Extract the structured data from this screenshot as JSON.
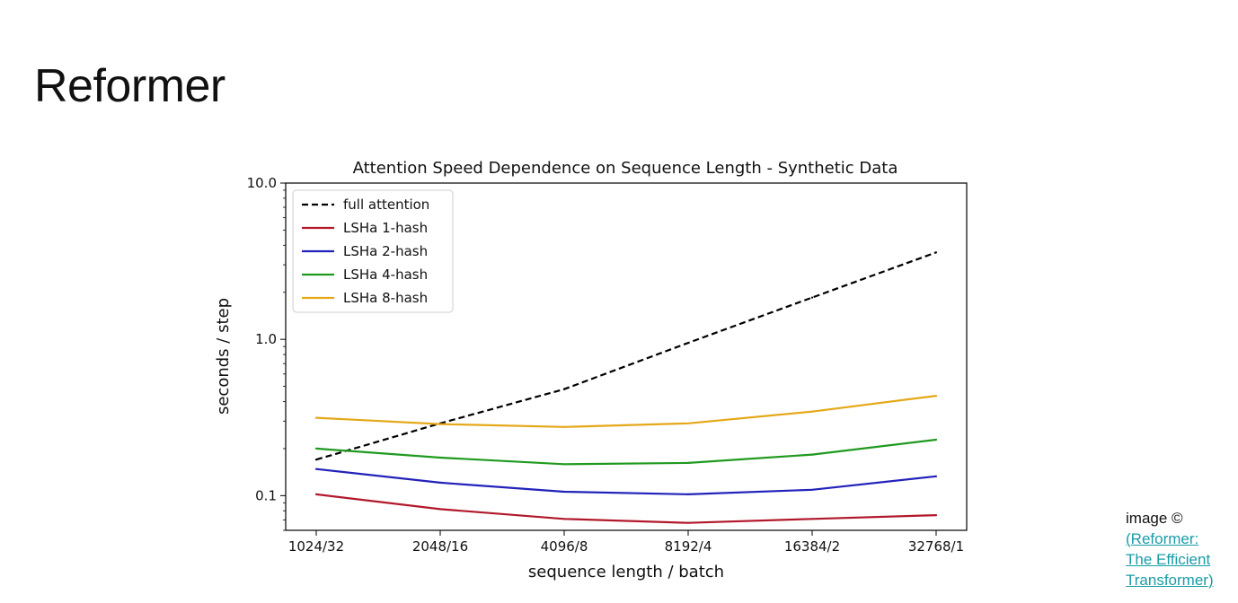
{
  "slide": {
    "title": "Reformer"
  },
  "credit": {
    "label": "image ©",
    "link_lines": [
      "(Reformer:",
      "The Efficient",
      "Transformer)"
    ]
  },
  "chart_data": {
    "type": "line",
    "title": "Attention Speed Dependence on Sequence Length - Synthetic Data",
    "xlabel": "sequence length / batch",
    "ylabel": "seconds / step",
    "categories": [
      "1024/32",
      "2048/16",
      "4096/8",
      "8192/4",
      "16384/2",
      "32768/1"
    ],
    "y_scale": "log",
    "ylim": [
      0.06,
      10.0
    ],
    "y_ticks": [
      {
        "value": 0.1,
        "label": "0.1"
      },
      {
        "value": 1.0,
        "label": "1.0"
      },
      {
        "value": 10.0,
        "label": "10.0"
      }
    ],
    "grid": false,
    "legend_position": "top-left",
    "series": [
      {
        "name": "full attention",
        "color": "#000000",
        "dashed": true,
        "values": [
          0.17,
          0.29,
          0.48,
          0.95,
          1.85,
          3.6
        ]
      },
      {
        "name": "LSHa 1-hash",
        "color": "#b2182b",
        "dashed": false,
        "values": [
          0.102,
          0.082,
          0.071,
          0.067,
          0.071,
          0.075
        ]
      },
      {
        "name": "LSHa 2-hash",
        "color": "#2222bb",
        "dashed": false,
        "values": [
          0.148,
          0.121,
          0.106,
          0.102,
          0.109,
          0.133
        ]
      },
      {
        "name": "LSHa 4-hash",
        "color": "#1f9a1f",
        "dashed": false,
        "values": [
          0.2,
          0.175,
          0.159,
          0.162,
          0.183,
          0.228
        ]
      },
      {
        "name": "LSHa 8-hash",
        "color": "#e5a818",
        "dashed": false,
        "values": [
          0.315,
          0.287,
          0.275,
          0.29,
          0.345,
          0.435
        ]
      }
    ]
  }
}
